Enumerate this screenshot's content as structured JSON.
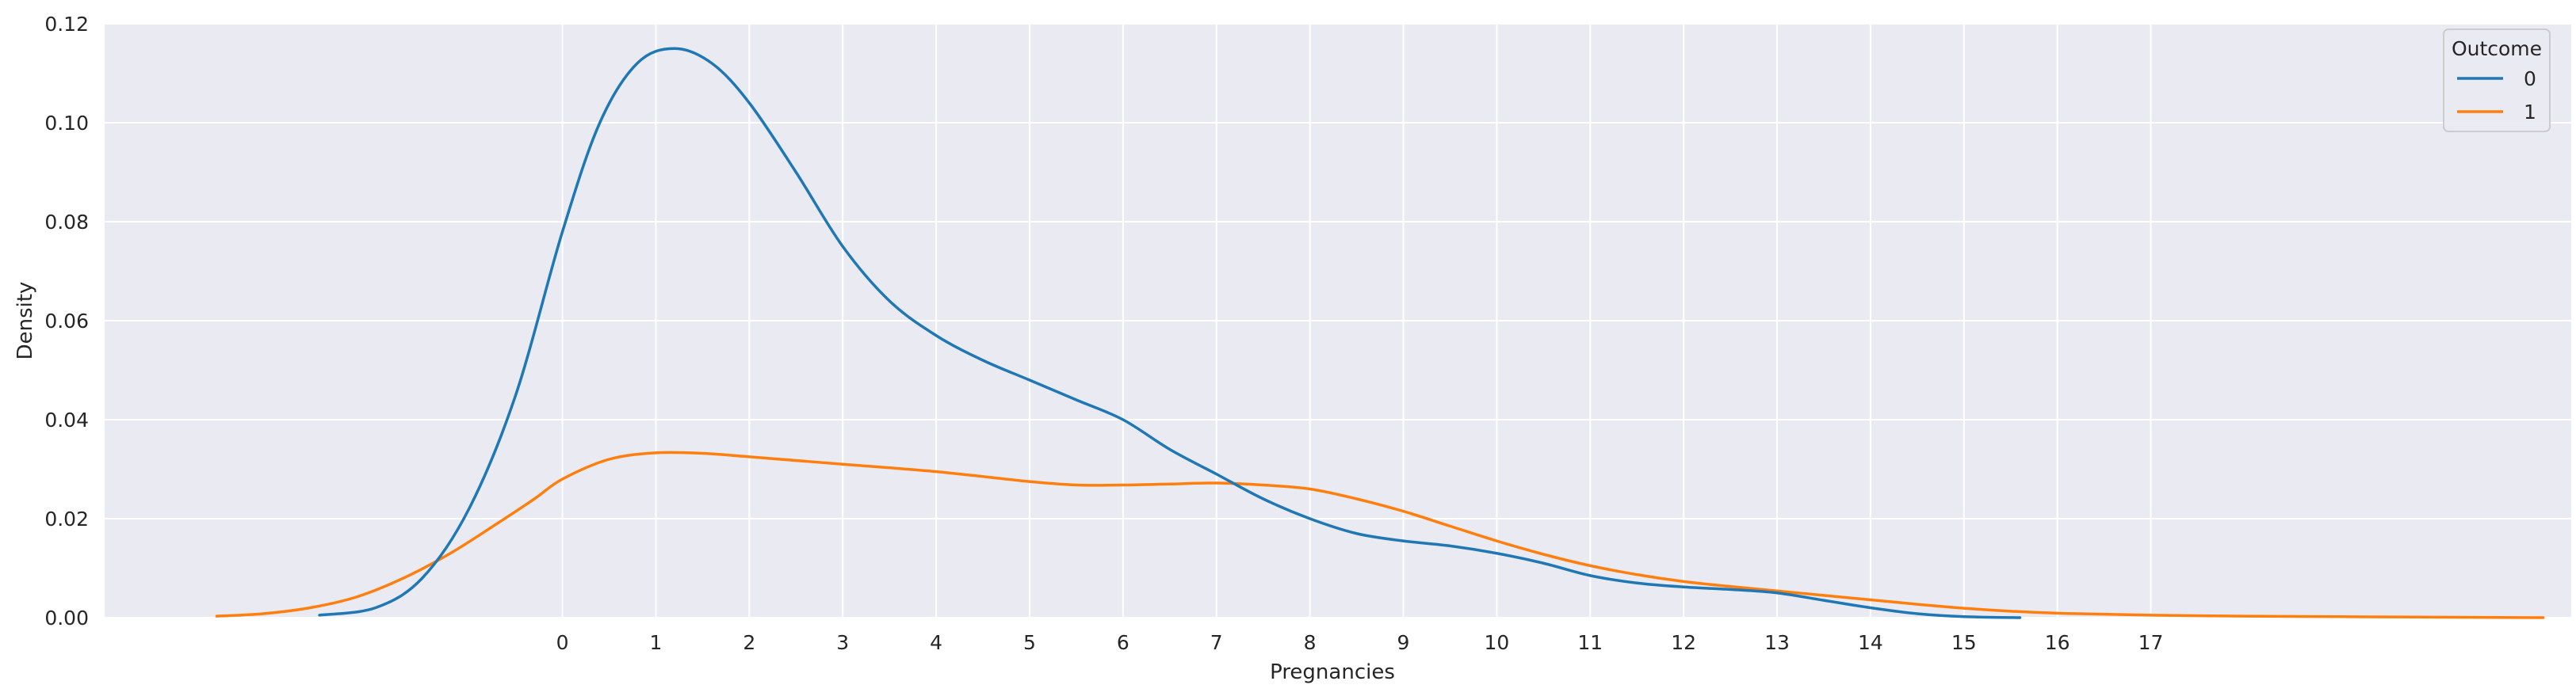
{
  "chart_data": {
    "type": "line",
    "title": "",
    "xlabel": "Pregnancies",
    "ylabel": "Density",
    "xlim": [
      -4.9,
      21.5
    ],
    "ylim": [
      0,
      0.12
    ],
    "x_ticks": [
      0,
      1,
      2,
      3,
      4,
      5,
      6,
      7,
      8,
      9,
      10,
      11,
      12,
      13,
      14,
      15,
      16,
      17
    ],
    "x_tick_labels": [
      "0",
      "1",
      "2",
      "3",
      "4",
      "5",
      "6",
      "7",
      "8",
      "9",
      "10",
      "11",
      "12",
      "13",
      "14",
      "15",
      "16",
      "17"
    ],
    "y_ticks": [
      0,
      0.02,
      0.04,
      0.06,
      0.08,
      0.1,
      0.12
    ],
    "y_tick_labels": [
      "0.00",
      "0.02",
      "0.04",
      "0.06",
      "0.08",
      "0.10",
      "0.12"
    ],
    "grid": true,
    "background": "#eaeaf2",
    "legend": {
      "title": "Outcome",
      "position": "top-right"
    },
    "series": [
      {
        "name": "0",
        "color": "#1f77b4",
        "points": [
          [
            -2.6,
            0.0005
          ],
          [
            -2.0,
            0.002
          ],
          [
            -1.5,
            0.008
          ],
          [
            -1.0,
            0.022
          ],
          [
            -0.5,
            0.045
          ],
          [
            0.0,
            0.078
          ],
          [
            0.4,
            0.1
          ],
          [
            0.8,
            0.112
          ],
          [
            1.2,
            0.115
          ],
          [
            1.6,
            0.112
          ],
          [
            2.0,
            0.104
          ],
          [
            2.5,
            0.09
          ],
          [
            3.0,
            0.075
          ],
          [
            3.5,
            0.064
          ],
          [
            4.0,
            0.057
          ],
          [
            4.5,
            0.052
          ],
          [
            5.0,
            0.048
          ],
          [
            5.5,
            0.044
          ],
          [
            6.0,
            0.04
          ],
          [
            6.5,
            0.034
          ],
          [
            7.0,
            0.029
          ],
          [
            7.5,
            0.024
          ],
          [
            8.0,
            0.02
          ],
          [
            8.5,
            0.017
          ],
          [
            9.0,
            0.0155
          ],
          [
            9.5,
            0.0145
          ],
          [
            10.0,
            0.013
          ],
          [
            10.5,
            0.011
          ],
          [
            11.0,
            0.0085
          ],
          [
            11.5,
            0.007
          ],
          [
            12.0,
            0.0062
          ],
          [
            12.5,
            0.0057
          ],
          [
            13.0,
            0.005
          ],
          [
            13.5,
            0.0035
          ],
          [
            14.0,
            0.002
          ],
          [
            14.5,
            0.0008
          ],
          [
            15.0,
            0.0002
          ],
          [
            15.6,
            0.0
          ]
        ]
      },
      {
        "name": "1",
        "color": "#ff7f0e",
        "points": [
          [
            -3.7,
            0.0003
          ],
          [
            -3.2,
            0.0008
          ],
          [
            -2.7,
            0.002
          ],
          [
            -2.2,
            0.0042
          ],
          [
            -1.7,
            0.008
          ],
          [
            -1.2,
            0.013
          ],
          [
            -0.7,
            0.019
          ],
          [
            -0.3,
            0.024
          ],
          [
            0.0,
            0.028
          ],
          [
            0.5,
            0.032
          ],
          [
            1.0,
            0.0333
          ],
          [
            1.5,
            0.0332
          ],
          [
            2.0,
            0.0325
          ],
          [
            3.0,
            0.031
          ],
          [
            4.0,
            0.0295
          ],
          [
            5.0,
            0.0275
          ],
          [
            5.5,
            0.0268
          ],
          [
            6.0,
            0.0268
          ],
          [
            6.5,
            0.027
          ],
          [
            7.0,
            0.0272
          ],
          [
            7.5,
            0.0268
          ],
          [
            8.0,
            0.026
          ],
          [
            8.5,
            0.024
          ],
          [
            9.0,
            0.0215
          ],
          [
            9.5,
            0.0185
          ],
          [
            10.0,
            0.0155
          ],
          [
            10.5,
            0.0128
          ],
          [
            11.0,
            0.0105
          ],
          [
            11.5,
            0.0087
          ],
          [
            12.0,
            0.0073
          ],
          [
            12.5,
            0.0063
          ],
          [
            13.0,
            0.0054
          ],
          [
            13.5,
            0.0045
          ],
          [
            14.0,
            0.0036
          ],
          [
            14.5,
            0.0027
          ],
          [
            15.0,
            0.0019
          ],
          [
            15.5,
            0.0013
          ],
          [
            16.0,
            0.0009
          ],
          [
            16.5,
            0.0007
          ],
          [
            17.0,
            0.0005
          ],
          [
            18.0,
            0.0003
          ],
          [
            19.0,
            0.0002
          ],
          [
            20.0,
            0.0001
          ],
          [
            21.2,
            0.0
          ]
        ]
      }
    ]
  }
}
